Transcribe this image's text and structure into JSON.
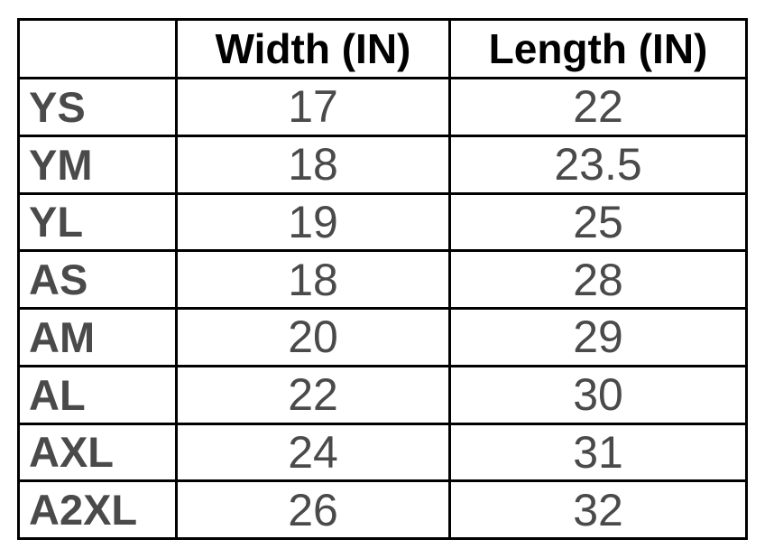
{
  "table": {
    "columns": [
      "Width (IN)",
      "Length (IN)"
    ],
    "rows": [
      [
        "YS",
        "17",
        "22"
      ],
      [
        "YM",
        "18",
        "23.5"
      ],
      [
        "YL",
        "19",
        "25"
      ],
      [
        "AS",
        "18",
        "28"
      ],
      [
        "AM",
        "20",
        "29"
      ],
      [
        "AL",
        "22",
        "30"
      ],
      [
        "AXL",
        "24",
        "31"
      ],
      [
        "A2XL",
        "26",
        "32"
      ]
    ]
  }
}
